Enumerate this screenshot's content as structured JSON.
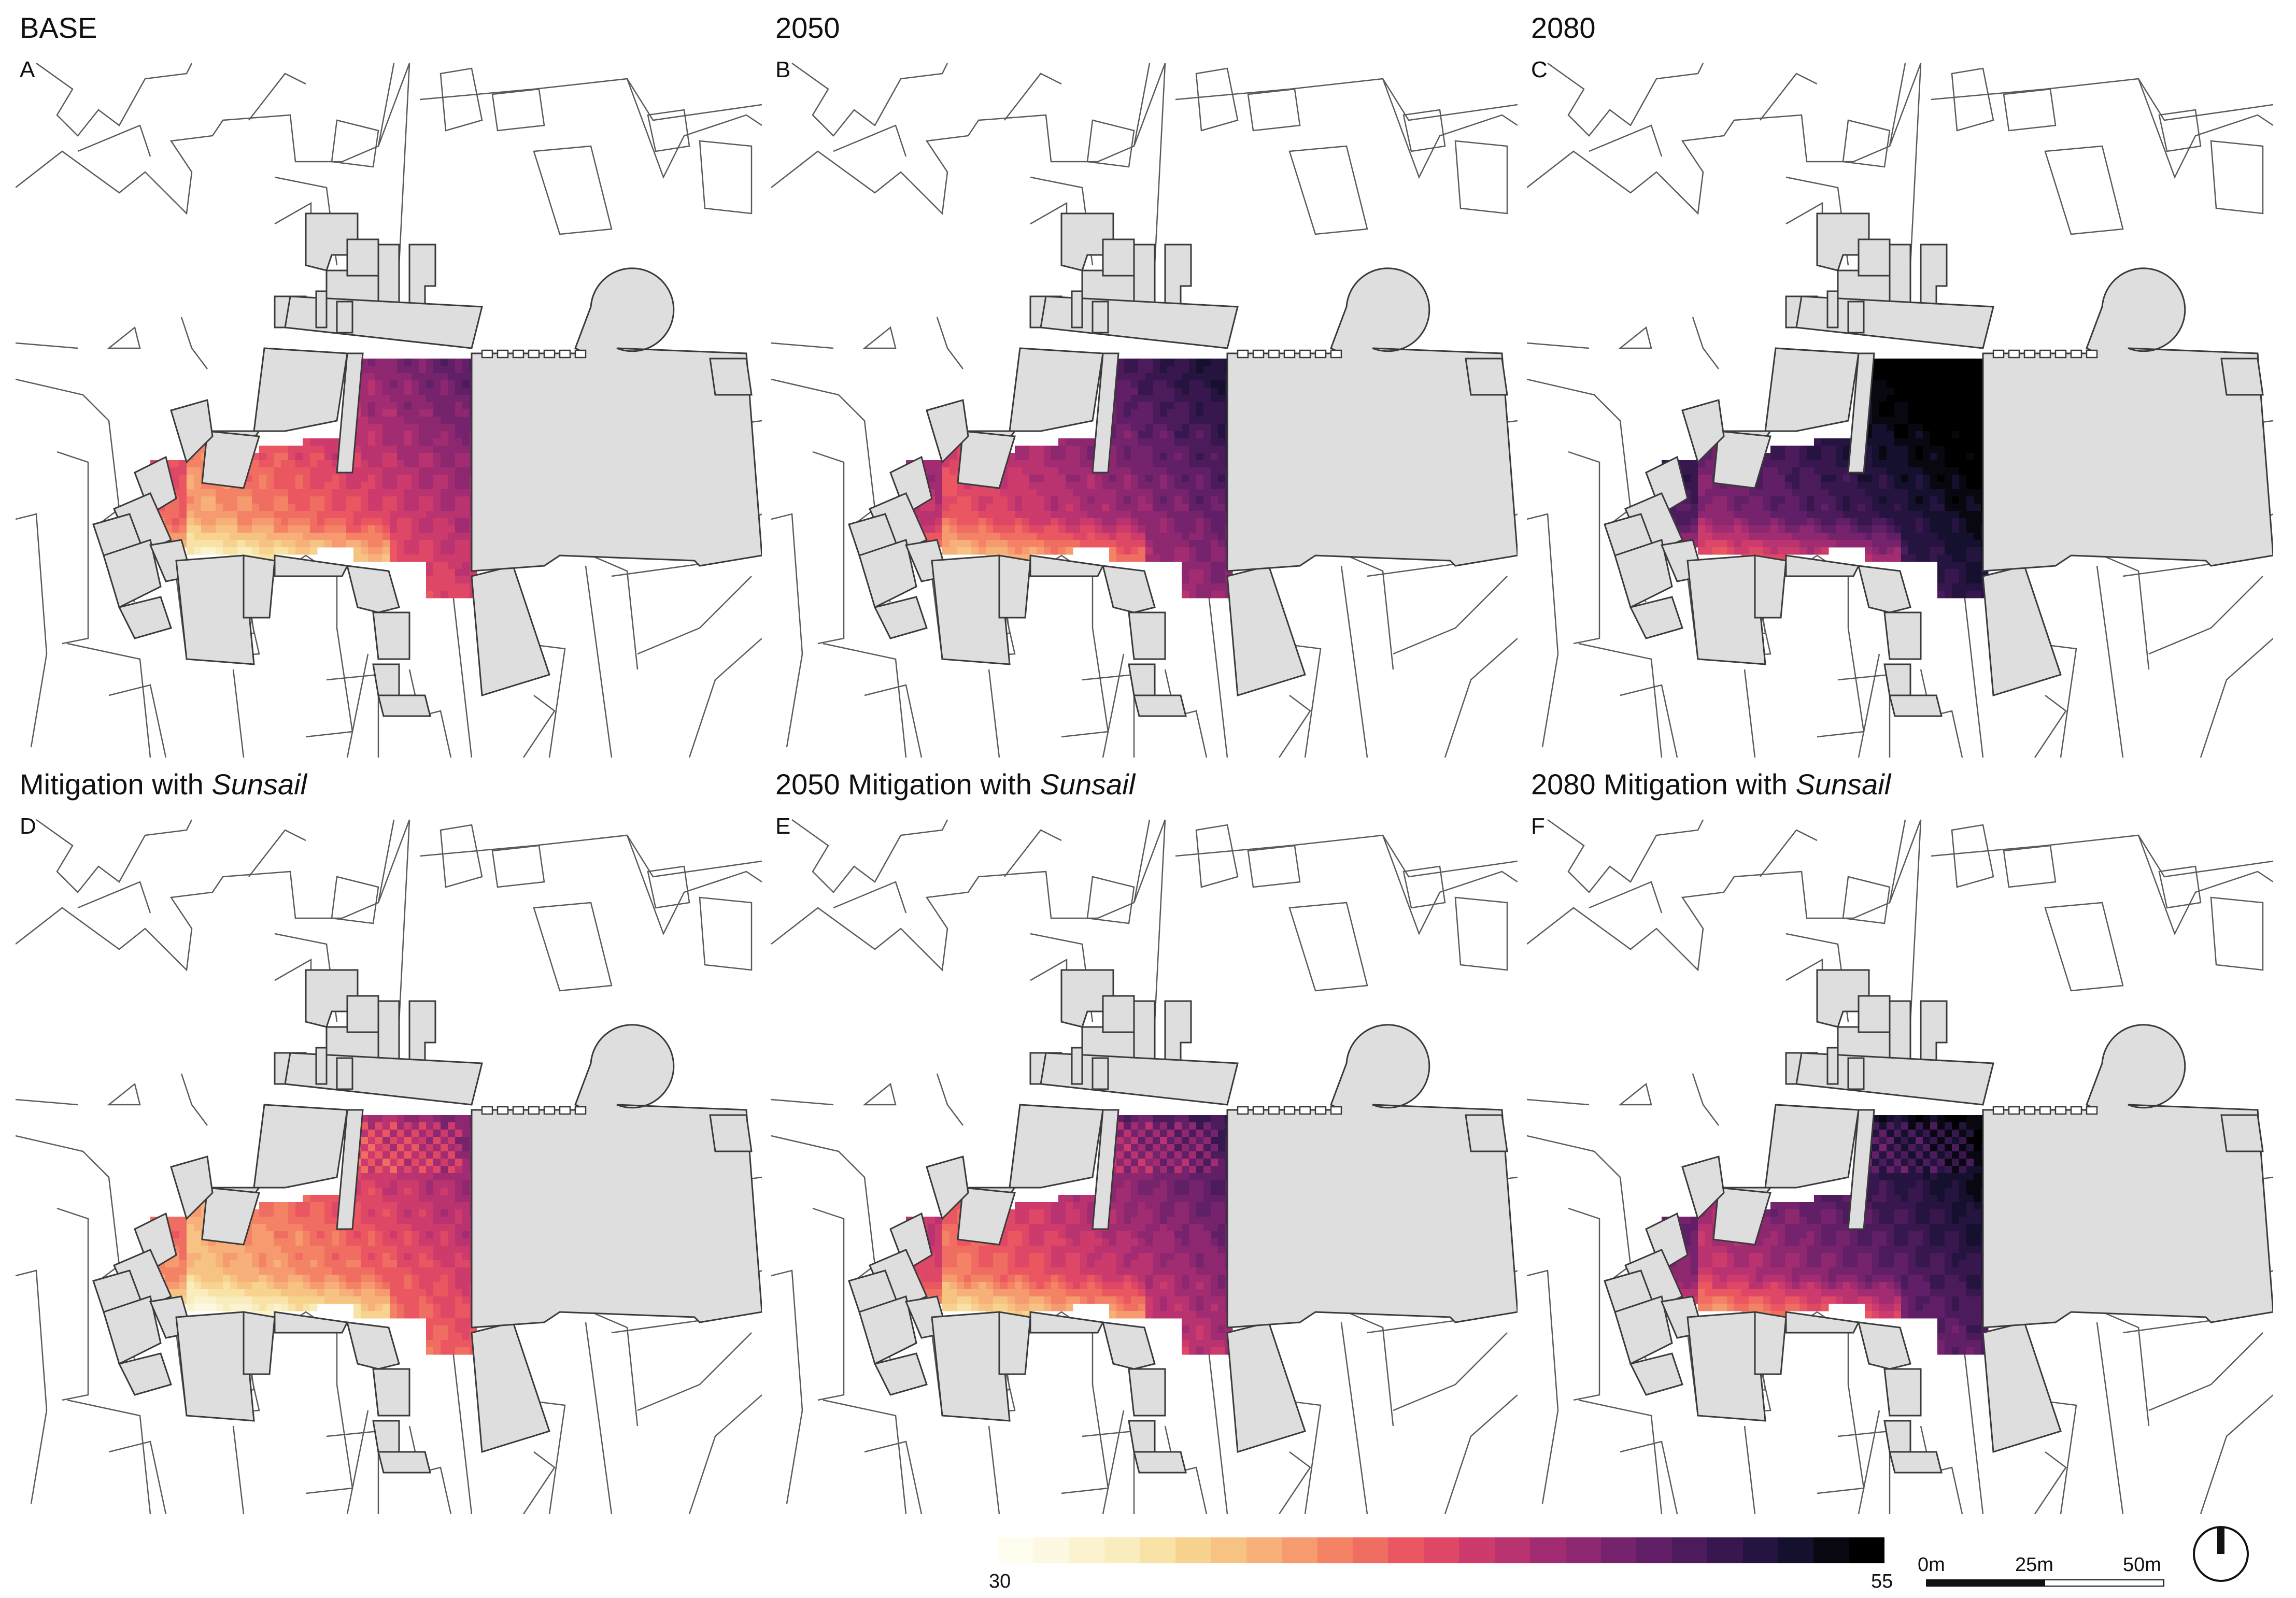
{
  "panels": [
    {
      "title": "BASE",
      "title_italic": "",
      "letter": "A",
      "heat_level": 0.25,
      "mitigated": false
    },
    {
      "title": "2050",
      "title_italic": "",
      "letter": "B",
      "heat_level": 0.45,
      "mitigated": false
    },
    {
      "title": "2080",
      "title_italic": "",
      "letter": "C",
      "heat_level": 0.75,
      "mitigated": false
    },
    {
      "title": "Mitigation with ",
      "title_italic": "Sunsail",
      "letter": "D",
      "heat_level": 0.15,
      "mitigated": true
    },
    {
      "title": "2050 Mitigation with ",
      "title_italic": "Sunsail",
      "letter": "E",
      "heat_level": 0.35,
      "mitigated": true
    },
    {
      "title": "2080 Mitigation with ",
      "title_italic": "Sunsail",
      "letter": "F",
      "heat_level": 0.6,
      "mitigated": true
    }
  ],
  "legend": {
    "min_label": "30",
    "max_label": "55",
    "colors": [
      "#fffdf0",
      "#fdf8e1",
      "#fbf2cf",
      "#f9ecbd",
      "#f8e2a6",
      "#f7d38f",
      "#f7c382",
      "#f7b07a",
      "#f69a6f",
      "#f48366",
      "#f06d62",
      "#ea5761",
      "#de4766",
      "#cc3b6c",
      "#b8336f",
      "#a22c71",
      "#8c2770",
      "#76236d",
      "#601f66",
      "#4b1b5c",
      "#38174f",
      "#251440",
      "#15102e",
      "#090810",
      "#000000"
    ]
  },
  "scale_bar": {
    "labels": [
      "0m",
      "25m",
      "50m"
    ]
  },
  "north_arrow": {
    "icon": "north-arrow-icon"
  },
  "map_colors": {
    "building_fill": "#dedede",
    "building_stroke": "#3a3a3a",
    "parcel_stroke": "#5a5a5a"
  }
}
